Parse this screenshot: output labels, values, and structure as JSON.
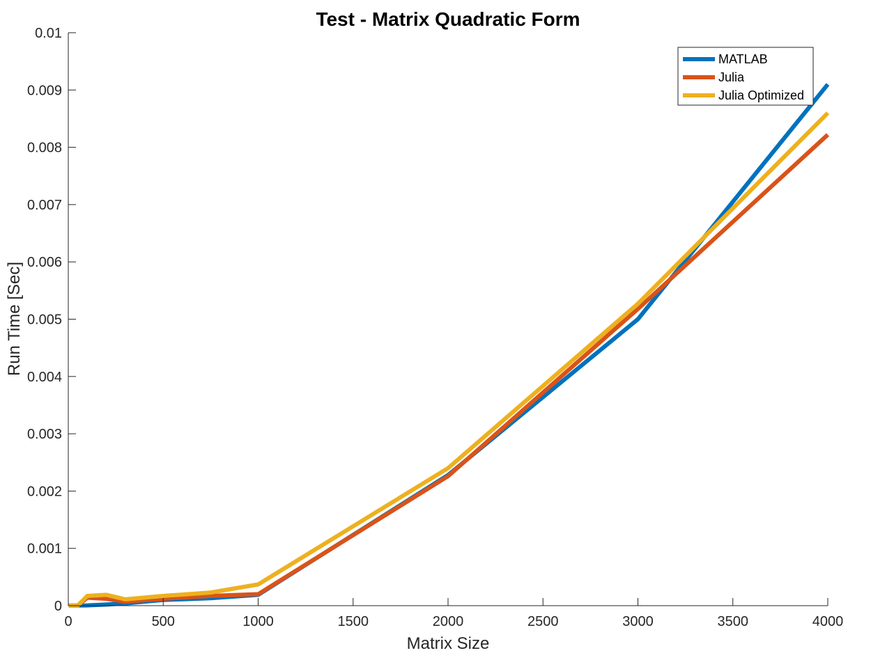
{
  "chart_data": {
    "type": "line",
    "title": "Test - Matrix Quadratic Form",
    "xlabel": "Matrix Size",
    "ylabel": "Run Time  [Sec]",
    "xlim": [
      0,
      4000
    ],
    "ylim": [
      0,
      0.01
    ],
    "xticks": [
      0,
      500,
      1000,
      1500,
      2000,
      2500,
      3000,
      3500,
      4000
    ],
    "xtick_labels": [
      "0",
      "500",
      "1000",
      "1500",
      "2000",
      "2500",
      "3000",
      "3500",
      "4000"
    ],
    "yticks": [
      0,
      0.001,
      0.002,
      0.003,
      0.004,
      0.005,
      0.006,
      0.007,
      0.008,
      0.009,
      0.01
    ],
    "ytick_labels": [
      "0",
      "0.001",
      "0.002",
      "0.003",
      "0.004",
      "0.005",
      "0.006",
      "0.007",
      "0.008",
      "0.009",
      "0.01"
    ],
    "grid": false,
    "legend_position": "top-right",
    "x": [
      2,
      5,
      10,
      20,
      50,
      100,
      200,
      300,
      500,
      750,
      1000,
      2000,
      3000,
      4000
    ],
    "series": [
      {
        "name": "MATLAB",
        "color": "#0072bd",
        "values": [
          1e-06,
          1e-06,
          1e-06,
          1e-06,
          2e-06,
          5e-06,
          2e-05,
          4e-05,
          0.0001,
          0.00013,
          0.00019,
          0.00228,
          0.005,
          0.0091
        ]
      },
      {
        "name": "Julia",
        "color": "#d95319",
        "values": [
          1e-06,
          1e-06,
          1e-06,
          1e-06,
          2e-06,
          0.00014,
          0.00012,
          7e-05,
          0.00012,
          0.00017,
          0.0002,
          0.00226,
          0.00518,
          0.00822
        ]
      },
      {
        "name": "Julia Optimized",
        "color": "#edb120",
        "values": [
          1e-06,
          1e-06,
          1e-06,
          1e-06,
          2e-06,
          0.00017,
          0.00019,
          0.00011,
          0.00017,
          0.00023,
          0.00037,
          0.0024,
          0.00527,
          0.0086
        ]
      }
    ]
  }
}
